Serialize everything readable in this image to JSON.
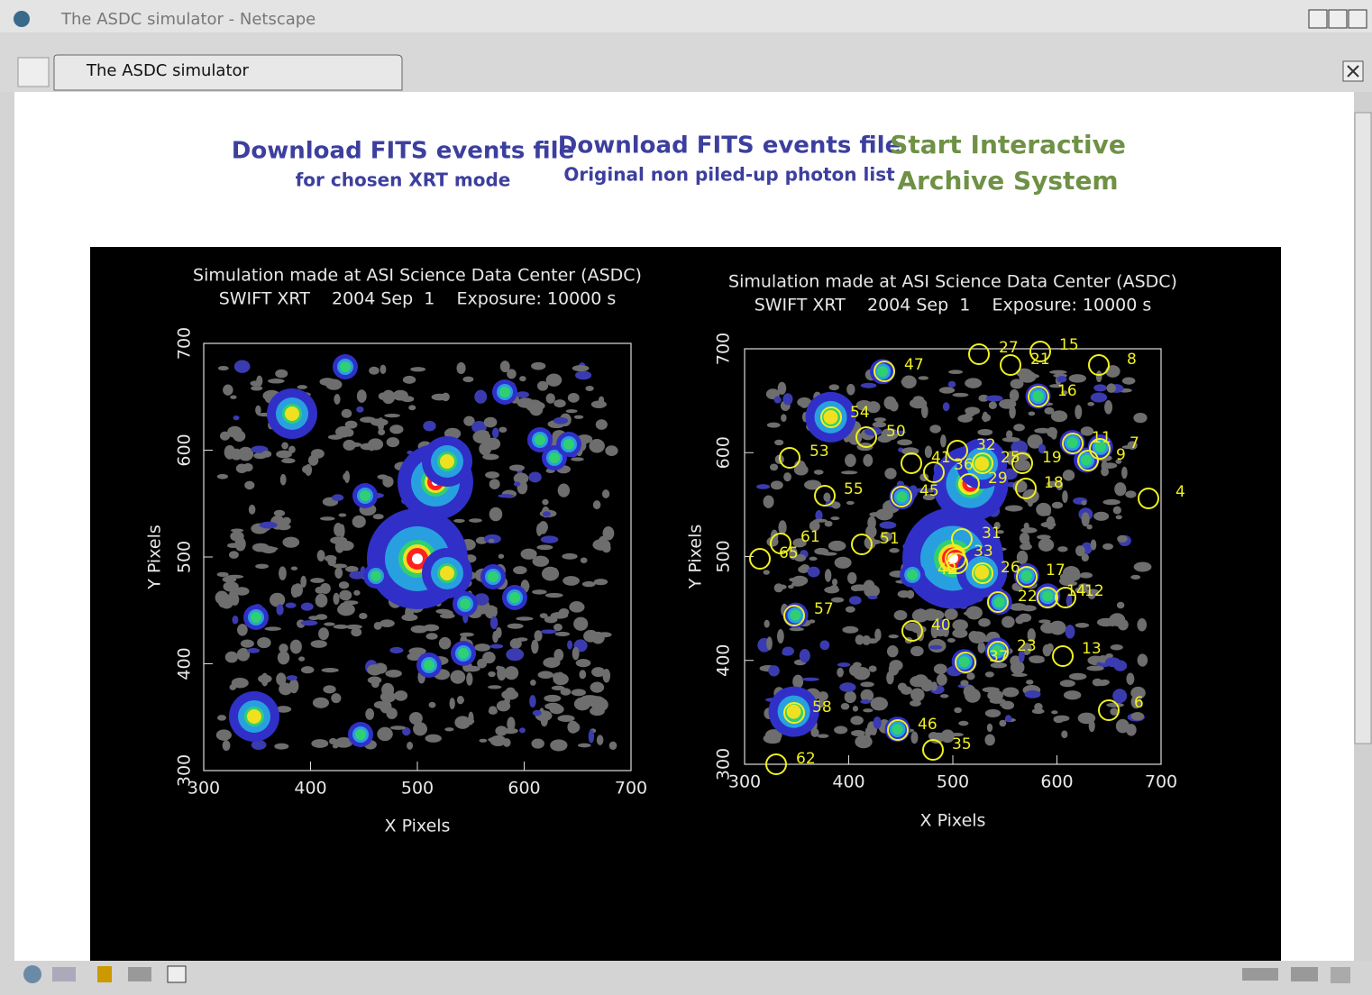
{
  "window": {
    "title": "The ASDC simulator - Netscape",
    "tab": "The ASDC simulator"
  },
  "links": [
    {
      "lines": [
        "Download FITS events file",
        "for chosen XRT mode"
      ]
    },
    {
      "lines": [
        "Download FITS events file",
        "Original non piled-up photon list"
      ]
    },
    {
      "lines": [
        "Start Interactive",
        "Archive System"
      ]
    }
  ],
  "plots": [
    {
      "title": [
        "Simulation made at ASI Science Data Center (ASDC)",
        "SWIFT XRT    2004 Sep  1    Exposure: 10000 s"
      ],
      "xlabel": "X Pixels",
      "ylabel": "Y Pixels",
      "xticks": [
        "300",
        "400",
        "500",
        "600",
        "700"
      ],
      "yticks": [
        "300",
        "400",
        "500",
        "600",
        "700"
      ]
    },
    {
      "title": [
        "Simulation made at ASI Science Data Center (ASDC)",
        "SWIFT XRT    2004 Sep  1    Exposure: 10000 s"
      ],
      "xlabel": "X Pixels",
      "ylabel": "Y Pixels",
      "xticks": [
        "300",
        "400",
        "500",
        "600",
        "700"
      ],
      "yticks": [
        "300",
        "400",
        "500",
        "600",
        "700"
      ],
      "sources": [
        "47",
        "27",
        "21",
        "15",
        "8",
        "16",
        "54",
        "50",
        "53",
        "41",
        "36",
        "32",
        "25",
        "19",
        "11",
        "9",
        "7",
        "29",
        "18",
        "55",
        "45",
        "4",
        "61",
        "51",
        "65",
        "31",
        "33",
        "42",
        "26",
        "17",
        "22",
        "14",
        "12",
        "57",
        "40",
        "23",
        "37",
        "13",
        "6",
        "58",
        "46",
        "35",
        "62"
      ]
    }
  ]
}
